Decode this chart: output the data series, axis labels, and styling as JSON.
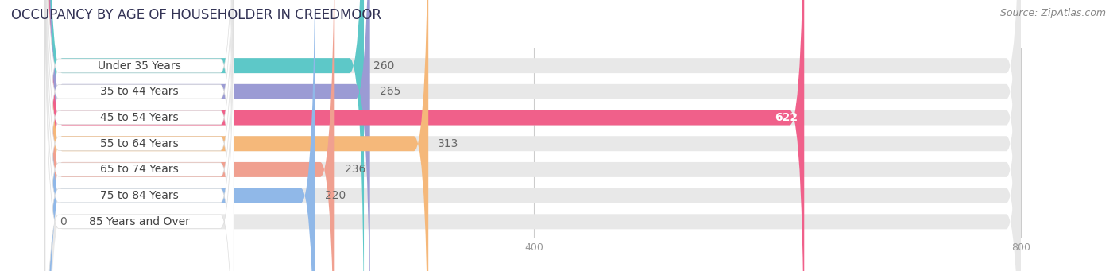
{
  "title": "OCCUPANCY BY AGE OF HOUSEHOLDER IN CREEDMOOR",
  "source": "Source: ZipAtlas.com",
  "categories": [
    "Under 35 Years",
    "35 to 44 Years",
    "45 to 54 Years",
    "55 to 64 Years",
    "65 to 74 Years",
    "75 to 84 Years",
    "85 Years and Over"
  ],
  "values": [
    260,
    265,
    622,
    313,
    236,
    220,
    0
  ],
  "bar_colors": [
    "#5dc8c8",
    "#9b9bd4",
    "#f0608a",
    "#f5b87a",
    "#f0a090",
    "#90b8e8",
    "#d4a8d8"
  ],
  "bar_bg_color": "#e8e8e8",
  "label_bg_color": "#ffffff",
  "label_text_color": "#444444",
  "value_color_inside": "#ffffff",
  "value_color_outside": "#666666",
  "xlim_min": -30,
  "xlim_max": 870,
  "data_max": 800,
  "title_fontsize": 12,
  "source_fontsize": 9,
  "label_fontsize": 10,
  "value_fontsize": 10,
  "bar_height": 0.58,
  "background_color": "#ffffff",
  "fig_width": 14.06,
  "fig_height": 3.41,
  "xticks": [
    0,
    400,
    800
  ]
}
